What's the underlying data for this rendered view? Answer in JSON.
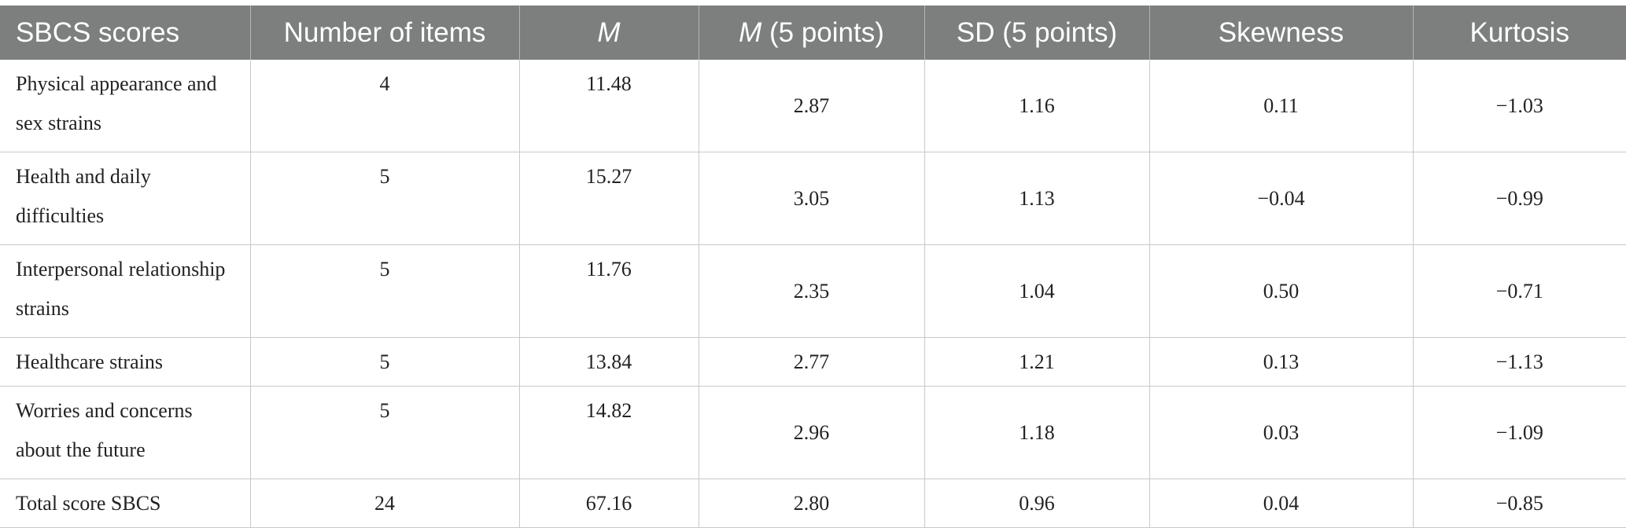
{
  "table": {
    "headers": [
      {
        "text": "SBCS scores",
        "italic": false
      },
      {
        "text": "Number of items",
        "italic": false
      },
      {
        "text": "M",
        "italic": true
      },
      {
        "text_italic": "M",
        "text_rest": " (5 points)"
      },
      {
        "text": "SD (5 points)",
        "italic": false
      },
      {
        "text": "Skewness",
        "italic": false
      },
      {
        "text": "Kurtosis",
        "italic": false
      }
    ],
    "rows": [
      {
        "label": "Physical appearance and sex strains",
        "items": "4",
        "m": "11.48",
        "m5": "2.87",
        "sd5": "1.16",
        "skew": "0.11",
        "kurt": "−1.03"
      },
      {
        "label": "Health and daily difficulties",
        "items": "5",
        "m": "15.27",
        "m5": "3.05",
        "sd5": "1.13",
        "skew": "−0.04",
        "kurt": "−0.99"
      },
      {
        "label": "Interpersonal relationship strains",
        "items": "5",
        "m": "11.76",
        "m5": "2.35",
        "sd5": "1.04",
        "skew": "0.50",
        "kurt": "−0.71"
      },
      {
        "label": "Healthcare strains",
        "items": "5",
        "m": "13.84",
        "m5": "2.77",
        "sd5": "1.21",
        "skew": "0.13",
        "kurt": "−1.13"
      },
      {
        "label": "Worries and concerns about the future",
        "items": "5",
        "m": "14.82",
        "m5": "2.96",
        "sd5": "1.18",
        "skew": "0.03",
        "kurt": "−1.09"
      },
      {
        "label": "Total score SBCS",
        "items": "24",
        "m": "67.16",
        "m5": "2.80",
        "sd5": "0.96",
        "skew": "0.04",
        "kurt": "−0.85"
      }
    ]
  },
  "colors": {
    "header_bg": "#7d7f7e",
    "header_text": "#ffffff",
    "grid": "#c9c9c9"
  }
}
